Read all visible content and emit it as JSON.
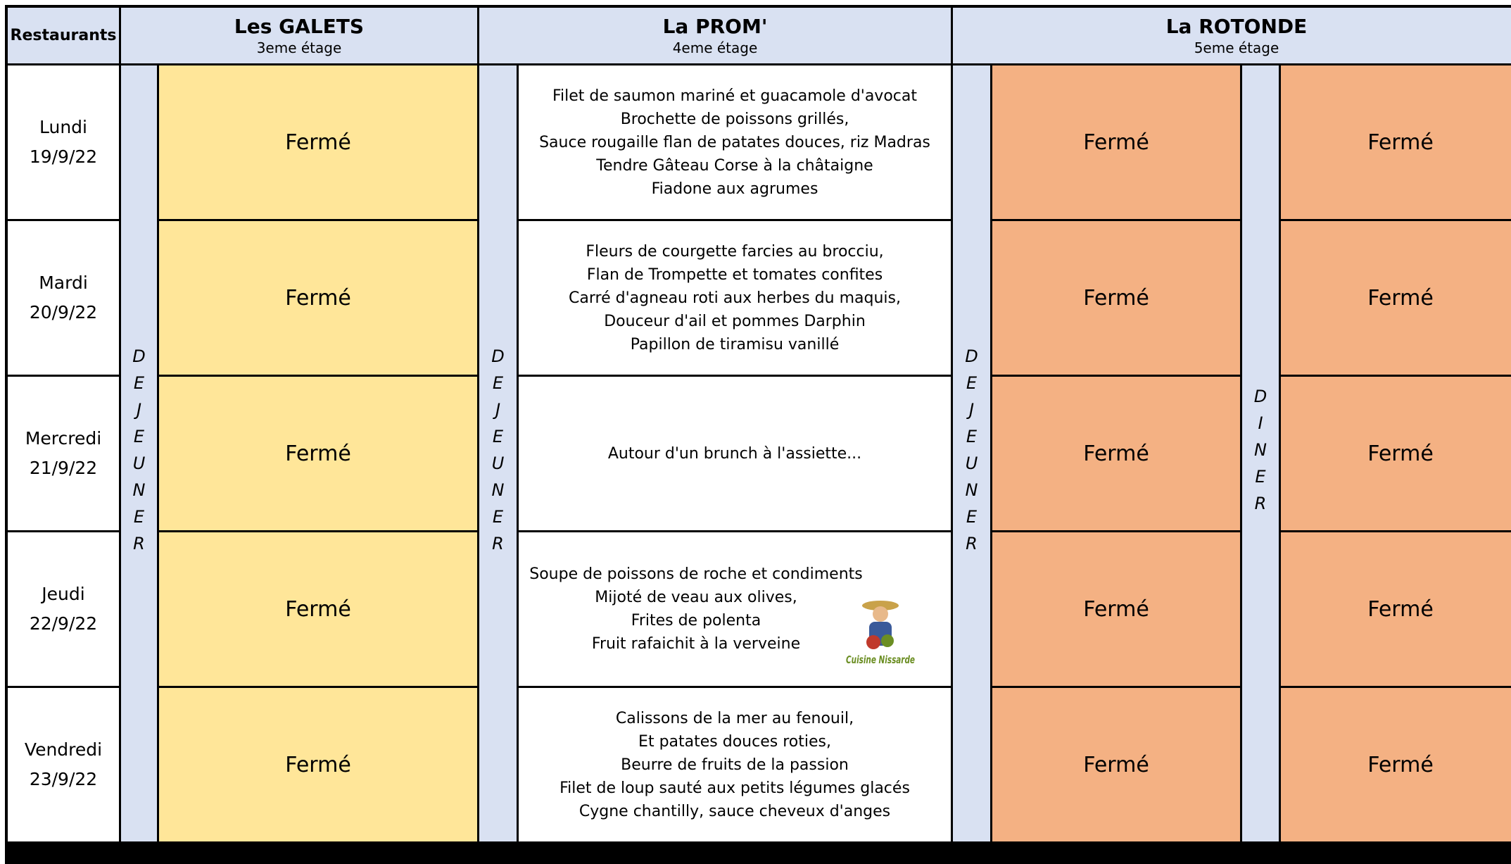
{
  "header": {
    "corner": "Restaurants",
    "restaurants": [
      {
        "name": "Les GALETS",
        "floor": "3eme étage"
      },
      {
        "name": "La PROM'",
        "floor": "4eme étage"
      },
      {
        "name": "La ROTONDE",
        "floor": "5eme étage"
      }
    ]
  },
  "meal_labels": {
    "lunch": "DEJEUNER",
    "dinner": "DINER"
  },
  "logo": {
    "text": "Cuisine Nissarde"
  },
  "days": [
    {
      "day": "Lundi",
      "date": "19/9/22",
      "galets": "Fermé",
      "prom": [
        "Filet de saumon mariné et guacamole d'avocat",
        "Brochette de poissons grillés,",
        "Sauce rougaille flan de patates douces, riz Madras",
        "Tendre Gâteau Corse à la châtaigne",
        "Fiadone aux agrumes"
      ],
      "rotonde_lunch": "Fermé",
      "rotonde_dinner": "Fermé"
    },
    {
      "day": "Mardi",
      "date": "20/9/22",
      "galets": "Fermé",
      "prom": [
        "Fleurs de courgette farcies au brocciu,",
        "Flan de Trompette et tomates confites",
        "Carré d'agneau roti aux herbes du maquis,",
        "Douceur d'ail et pommes Darphin",
        "Papillon de tiramisu vanillé"
      ],
      "rotonde_lunch": "Fermé",
      "rotonde_dinner": "Fermé"
    },
    {
      "day": "Mercredi",
      "date": "21/9/22",
      "galets": "Fermé",
      "prom": [
        "Autour d'un brunch à l'assiette..."
      ],
      "rotonde_lunch": "Fermé",
      "rotonde_dinner": "Fermé"
    },
    {
      "day": "Jeudi",
      "date": "22/9/22",
      "galets": "Fermé",
      "prom": [
        "Soupe de poissons de roche et condiments",
        "Mijoté de veau aux olives,",
        "Frites de polenta",
        "Fruit rafaichit à la verveine"
      ],
      "rotonde_lunch": "Fermé",
      "rotonde_dinner": "Fermé"
    },
    {
      "day": "Vendredi",
      "date": "23/9/22",
      "galets": "Fermé",
      "prom": [
        "Calissons de la mer au fenouil,",
        "Et patates douces roties,",
        "Beurre de fruits de la passion",
        "Filet de loup sauté aux petits légumes glacés",
        "Cygne chantilly, sauce cheveux d'anges"
      ],
      "rotonde_lunch": "Fermé",
      "rotonde_dinner": "Fermé"
    }
  ]
}
